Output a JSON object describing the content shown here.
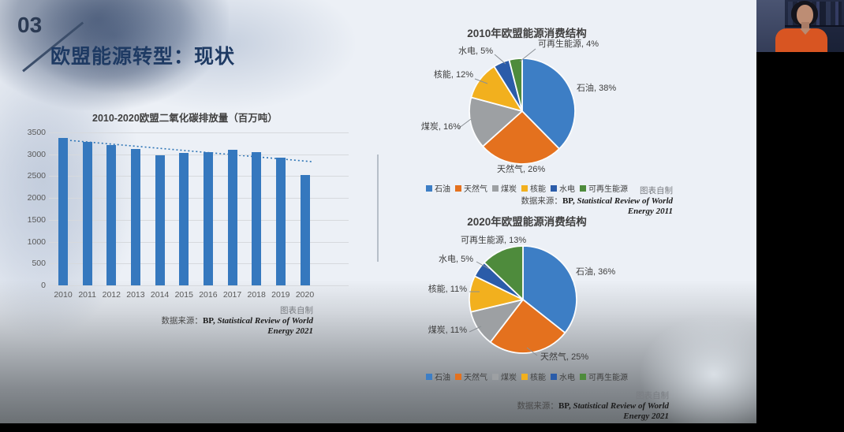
{
  "slide": {
    "number": "03",
    "title": "欧盟能源转型：现状"
  },
  "colors": {
    "bar": "#3578BE",
    "trendline": "#2E75B6",
    "oil": "#3D7EC5",
    "gas": "#E4711E",
    "coal": "#9DA0A3",
    "nuclear": "#F2B01E",
    "hydro": "#2B5CA9",
    "renewable": "#4E8B3C"
  },
  "chart_data": [
    {
      "id": "co2-bar",
      "type": "bar",
      "title": "2010-2020欧盟二氧化碳排放量（百万吨）",
      "categories": [
        "2010",
        "2011",
        "2012",
        "2013",
        "2014",
        "2015",
        "2016",
        "2017",
        "2018",
        "2019",
        "2020"
      ],
      "values": [
        3370,
        3290,
        3210,
        3130,
        2970,
        3030,
        3050,
        3110,
        3040,
        2920,
        2530
      ],
      "ylim": [
        0,
        3500
      ],
      "yticks": [
        0,
        500,
        1000,
        1500,
        2000,
        2500,
        3000,
        3500
      ],
      "grid": true,
      "bar_color": "#3578BE",
      "trendline": {
        "style": "dotted",
        "color": "#2E75B6",
        "from": 3340,
        "to": 2830
      },
      "source": {
        "note": "图表自制",
        "label": "数据来源：",
        "ref_bold": "BP,",
        "ref_italic": " Statistical Review of World",
        "ref_tail": "Energy 2021"
      }
    },
    {
      "id": "pie-2010",
      "type": "pie",
      "title": "2010年欧盟能源消费结构",
      "labels": [
        "石油",
        "天然气",
        "煤炭",
        "核能",
        "水电",
        "可再生能源"
      ],
      "values": [
        38,
        26,
        16,
        12,
        5,
        4
      ],
      "colors": [
        "#3D7EC5",
        "#E4711E",
        "#9DA0A3",
        "#F2B01E",
        "#2B5CA9",
        "#4E8B3C"
      ],
      "legend_position": "bottom",
      "source": {
        "note": "图表自制",
        "label": "数据来源：",
        "ref_bold": "BP,",
        "ref_italic": " Statistical Review of World",
        "ref_tail": "Energy 2011"
      }
    },
    {
      "id": "pie-2020",
      "type": "pie",
      "title": "2020年欧盟能源消费结构",
      "labels": [
        "石油",
        "天然气",
        "煤炭",
        "核能",
        "水电",
        "可再生能源"
      ],
      "values": [
        36,
        25,
        11,
        11,
        5,
        13
      ],
      "colors": [
        "#3D7EC5",
        "#E4711E",
        "#9DA0A3",
        "#F2B01E",
        "#2B5CA9",
        "#4E8B3C"
      ],
      "legend_position": "bottom",
      "source": {
        "note": "图表自制",
        "label": "数据来源：",
        "ref_bold": "BP,",
        "ref_italic": " Statistical Review of World",
        "ref_tail": "Energy 2021"
      }
    }
  ]
}
